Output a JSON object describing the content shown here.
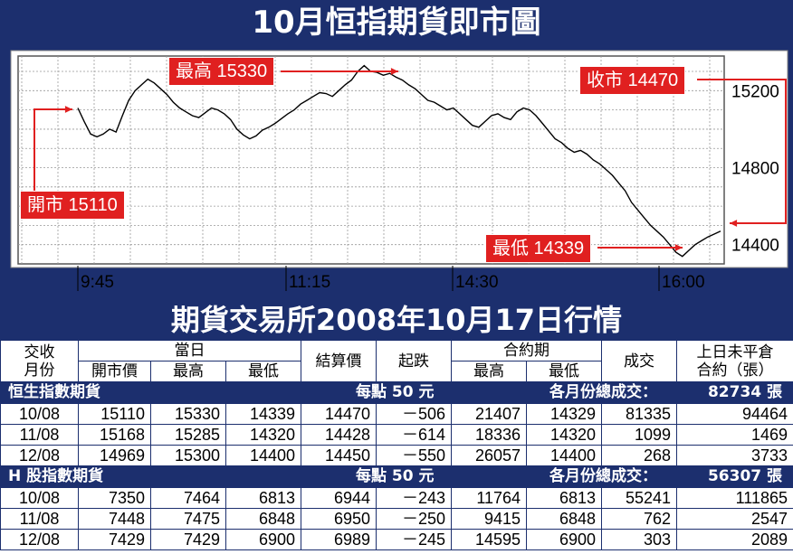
{
  "title": "10月恒指期貨即市圖",
  "table_title": "期貨交易所2008年10月17日行情",
  "colors": {
    "navy": "#1c2f6e",
    "callout_red": "#e02020"
  },
  "callouts": {
    "open": "開市 15110",
    "high": "最高 15330",
    "close": "收市 14470",
    "low": "最低 14339"
  },
  "chart_data": {
    "type": "line",
    "title": "10月恒指期貨即市圖",
    "x_tick_labels": [
      "9:45",
      "11:15",
      "14:30",
      "16:00"
    ],
    "y_tick_labels": [
      "15200",
      "14800",
      "14400"
    ],
    "ylim": [
      14300,
      15380
    ],
    "grid": true,
    "annotations": [
      {
        "label": "開市 15110",
        "value": 15110
      },
      {
        "label": "最高 15330",
        "value": 15330
      },
      {
        "label": "收市 14470",
        "value": 14470
      },
      {
        "label": "最低 14339",
        "value": 14339
      }
    ],
    "series": [
      {
        "values": [
          15110,
          15040,
          14975,
          14960,
          14975,
          15000,
          14985,
          15070,
          15150,
          15200,
          15230,
          15260,
          15240,
          15210,
          15180,
          15140,
          15110,
          15090,
          15070,
          15060,
          15085,
          15110,
          15100,
          15080,
          15050,
          15000,
          14970,
          14950,
          14965,
          14995,
          15010,
          15030,
          15055,
          15080,
          15100,
          15130,
          15150,
          15170,
          15190,
          15185,
          15170,
          15200,
          15230,
          15255,
          15300,
          15330,
          15300,
          15295,
          15280,
          15290,
          15270,
          15255,
          15230,
          15210,
          15180,
          15150,
          15140,
          15120,
          15100,
          15110,
          15080,
          15050,
          15020,
          15010,
          15040,
          15070,
          15080,
          15060,
          15050,
          15090,
          15110,
          15100,
          15070,
          15030,
          14990,
          14950,
          14930,
          14900,
          14880,
          14890,
          14870,
          14840,
          14820,
          14790,
          14760,
          14720,
          14680,
          14620,
          14580,
          14540,
          14500,
          14470,
          14440,
          14400,
          14360,
          14339,
          14370,
          14400,
          14420,
          14440,
          14455,
          14470
        ]
      }
    ]
  },
  "table": {
    "headers": {
      "month_line1": "交收",
      "month_line2": "月份",
      "day": "當日",
      "open": "開市價",
      "high": "最高",
      "low": "最低",
      "settle": "結算價",
      "change": "起跌",
      "contract": "合約期",
      "c_high": "最高",
      "c_low": "最低",
      "volume": "成交",
      "oi_line1": "上日未平倉",
      "oi_line2": "合約（張）"
    },
    "sections": [
      {
        "name": "恒生指數期貨",
        "per_point": "每點 50 元",
        "total_label": "各月份總成交：",
        "total_value": "82734 張",
        "rows": [
          [
            "10/08",
            "15110",
            "15330",
            "14339",
            "14470",
            "－506",
            "21407",
            "14329",
            "81335",
            "94464"
          ],
          [
            "11/08",
            "15168",
            "15285",
            "14320",
            "14428",
            "－614",
            "18336",
            "14320",
            "1099",
            "1469"
          ],
          [
            "12/08",
            "14969",
            "15300",
            "14400",
            "14450",
            "－550",
            "26057",
            "14400",
            "268",
            "3733"
          ]
        ]
      },
      {
        "name": "H 股指數期貨",
        "per_point": "每點 50 元",
        "total_label": "各月份總成交：",
        "total_value": "56307 張",
        "rows": [
          [
            "10/08",
            "7350",
            "7464",
            "6813",
            "6944",
            "－243",
            "11764",
            "6813",
            "55241",
            "111865"
          ],
          [
            "11/08",
            "7448",
            "7475",
            "6848",
            "6950",
            "－250",
            "9415",
            "6848",
            "762",
            "2547"
          ],
          [
            "12/08",
            "7429",
            "7429",
            "6900",
            "6989",
            "－245",
            "14595",
            "6900",
            "303",
            "2089"
          ]
        ]
      }
    ]
  }
}
